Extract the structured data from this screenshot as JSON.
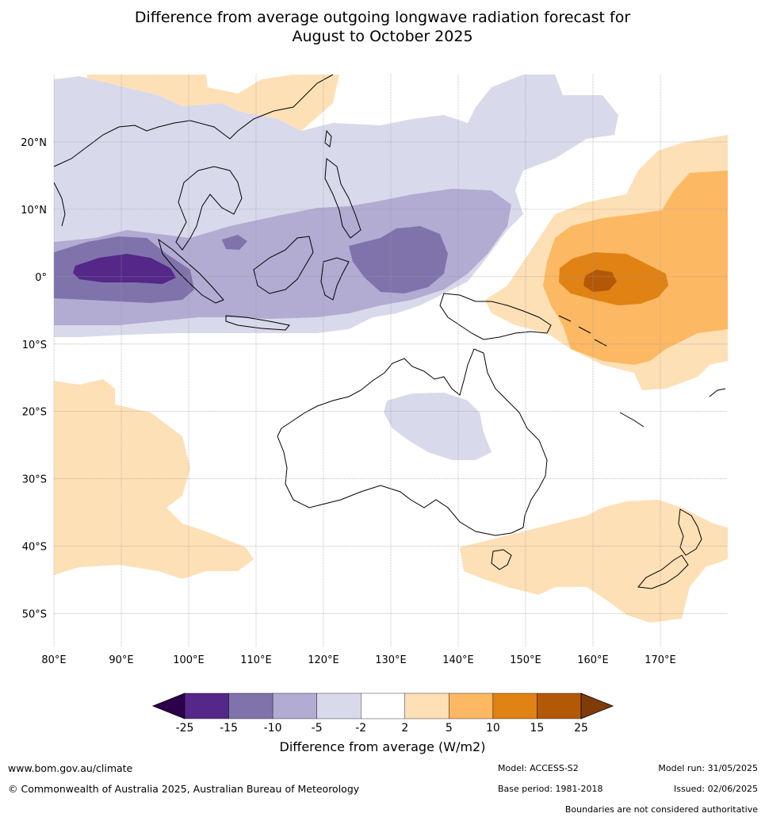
{
  "title_line1": "Difference from average outgoing longwave radiation forecast for",
  "title_line2": "August to October 2025",
  "map": {
    "lon_ticks": [
      "80°E",
      "90°E",
      "100°E",
      "110°E",
      "120°E",
      "130°E",
      "140°E",
      "150°E",
      "160°E",
      "170°E"
    ],
    "lat_ticks": [
      "20°N",
      "10°N",
      "0°",
      "10°S",
      "20°S",
      "30°S",
      "40°S",
      "50°S"
    ],
    "lon_values": [
      80,
      90,
      100,
      110,
      120,
      130,
      140,
      150,
      160,
      170
    ],
    "lat_values": [
      20,
      10,
      0,
      -10,
      -20,
      -30,
      -40,
      -50
    ],
    "extent": {
      "lon_min": 80,
      "lon_max": 180,
      "lat_min": -55,
      "lat_max": 30
    }
  },
  "colorbar": {
    "labels": [
      "-25",
      "-15",
      "-10",
      "-5",
      "-2",
      "2",
      "5",
      "10",
      "15",
      "25"
    ],
    "colors": [
      "#2d004b",
      "#542788",
      "#8073ac",
      "#b2abd2",
      "#d8daeb",
      "#ffffff",
      "#fee0b6",
      "#fdb863",
      "#e08214",
      "#b35806",
      "#7f3b08"
    ],
    "title": "Difference from average (W/m2)"
  },
  "footer": {
    "website": "www.bom.gov.au/climate",
    "copyright": "© Commonwealth of Australia 2025, Australian Bureau of Meteorology",
    "model": "Model: ACCESS-S2",
    "base_period": "Base period: 1981-2018",
    "model_run": "Model run: 31/05/2025",
    "issued": "Issued: 02/06/2025",
    "disclaimer": "Boundaries are not considered authoritative"
  }
}
